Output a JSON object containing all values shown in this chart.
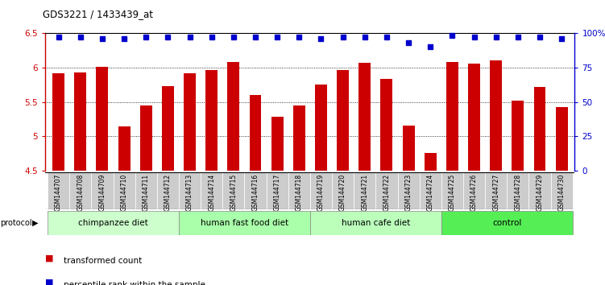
{
  "title": "GDS3221 / 1433439_at",
  "samples": [
    "GSM144707",
    "GSM144708",
    "GSM144709",
    "GSM144710",
    "GSM144711",
    "GSM144712",
    "GSM144713",
    "GSM144714",
    "GSM144715",
    "GSM144716",
    "GSM144717",
    "GSM144718",
    "GSM144719",
    "GSM144720",
    "GSM144721",
    "GSM144722",
    "GSM144723",
    "GSM144724",
    "GSM144725",
    "GSM144726",
    "GSM144727",
    "GSM144728",
    "GSM144729",
    "GSM144730"
  ],
  "bar_values": [
    5.92,
    5.93,
    6.01,
    5.15,
    5.45,
    5.73,
    5.91,
    5.96,
    6.08,
    5.6,
    5.28,
    5.45,
    5.75,
    5.96,
    6.06,
    5.83,
    5.16,
    4.76,
    6.08,
    6.05,
    6.1,
    5.52,
    5.72,
    5.42
  ],
  "percentile_values": [
    97,
    97,
    96,
    96,
    97,
    97,
    97,
    97,
    97,
    97,
    97,
    97,
    96,
    97,
    97,
    97,
    93,
    90,
    98,
    97,
    97,
    97,
    97,
    96
  ],
  "bar_color": "#cc0000",
  "percentile_color": "#0000cc",
  "ylim_left": [
    4.5,
    6.5
  ],
  "ylim_right": [
    0,
    100
  ],
  "yticks_left": [
    4.5,
    5.0,
    5.5,
    6.0,
    6.5
  ],
  "yticks_right": [
    0,
    25,
    50,
    75,
    100
  ],
  "ytick_labels_left": [
    "4.5",
    "5",
    "5.5",
    "6",
    "6.5"
  ],
  "ytick_labels_right": [
    "0",
    "25",
    "50",
    "75",
    "100%"
  ],
  "gridlines": [
    5.0,
    5.5,
    6.0
  ],
  "groups": [
    {
      "label": "chimpanzee diet",
      "start": 0,
      "end": 6,
      "color": "#ccffcc"
    },
    {
      "label": "human fast food diet",
      "start": 6,
      "end": 12,
      "color": "#aaffaa"
    },
    {
      "label": "human cafe diet",
      "start": 12,
      "end": 18,
      "color": "#bbffbb"
    },
    {
      "label": "control",
      "start": 18,
      "end": 24,
      "color": "#55ee55"
    }
  ],
  "legend_items": [
    {
      "label": "transformed count",
      "color": "#cc0000"
    },
    {
      "label": "percentile rank within the sample",
      "color": "#0000cc"
    }
  ],
  "protocol_label": "protocol",
  "xticklabel_bg": "#cccccc",
  "bar_width": 0.55
}
